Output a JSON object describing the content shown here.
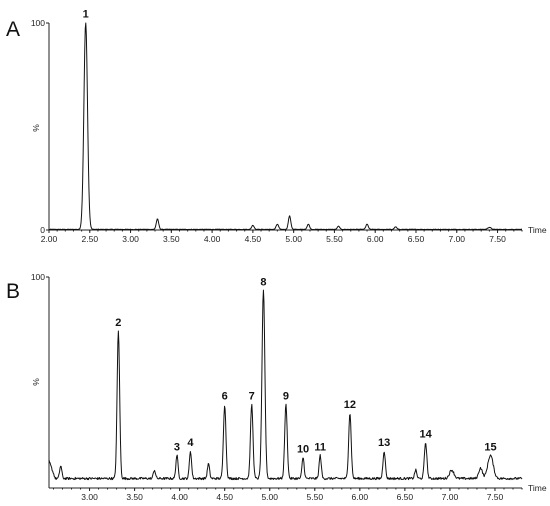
{
  "chart_data": [
    {
      "type": "line",
      "panel_label": "A",
      "xlabel": "Time",
      "ylabel": "%",
      "xlim": [
        2.0,
        7.8
      ],
      "ylim": [
        0,
        100
      ],
      "x_ticks": [
        "2.00",
        "2.50",
        "3.00",
        "3.50",
        "4.00",
        "4.50",
        "5.00",
        "5.50",
        "6.00",
        "6.50",
        "7.00",
        "7.50"
      ],
      "y_ticks": [
        "0",
        "100"
      ],
      "baseline": 0.3,
      "peaks": [
        {
          "label": "1",
          "x": 2.45,
          "y": 100,
          "w": 0.022
        },
        {
          "label": "",
          "x": 3.33,
          "y": 5,
          "w": 0.015
        },
        {
          "label": "",
          "x": 4.5,
          "y": 2,
          "w": 0.015
        },
        {
          "label": "",
          "x": 4.8,
          "y": 2.5,
          "w": 0.015
        },
        {
          "label": "",
          "x": 4.95,
          "y": 6.5,
          "w": 0.015
        },
        {
          "label": "",
          "x": 5.18,
          "y": 2.5,
          "w": 0.015
        },
        {
          "label": "",
          "x": 5.55,
          "y": 1.5,
          "w": 0.015
        },
        {
          "label": "",
          "x": 5.9,
          "y": 2.5,
          "w": 0.015
        },
        {
          "label": "",
          "x": 6.25,
          "y": 1.2,
          "w": 0.015
        },
        {
          "label": "",
          "x": 7.4,
          "y": 1.0,
          "w": 0.02
        }
      ]
    },
    {
      "type": "line",
      "panel_label": "B",
      "xlabel": "Time",
      "ylabel": "%",
      "xlim": [
        2.55,
        7.8
      ],
      "ylim": [
        0,
        100
      ],
      "x_ticks": [
        "3.00",
        "3.50",
        "4.00",
        "4.50",
        "5.00",
        "5.50",
        "6.00",
        "6.50",
        "7.00",
        "7.50"
      ],
      "y_ticks": [
        "100"
      ],
      "baseline": 4.5,
      "peaks": [
        {
          "label": "",
          "x": 2.68,
          "y": 6,
          "w": 0.012
        },
        {
          "label": "2",
          "x": 3.32,
          "y": 70,
          "w": 0.014
        },
        {
          "label": "",
          "x": 3.72,
          "y": 4,
          "w": 0.012
        },
        {
          "label": "3",
          "x": 3.97,
          "y": 11,
          "w": 0.012
        },
        {
          "label": "4",
          "x": 4.12,
          "y": 13,
          "w": 0.012
        },
        {
          "label": "",
          "x": 4.32,
          "y": 7,
          "w": 0.012
        },
        {
          "label": "6",
          "x": 4.5,
          "y": 35,
          "w": 0.014
        },
        {
          "label": "7",
          "x": 4.8,
          "y": 35,
          "w": 0.014
        },
        {
          "label": "8",
          "x": 4.93,
          "y": 89,
          "w": 0.016
        },
        {
          "label": "9",
          "x": 5.18,
          "y": 35,
          "w": 0.014
        },
        {
          "label": "10",
          "x": 5.37,
          "y": 10,
          "w": 0.012
        },
        {
          "label": "11",
          "x": 5.56,
          "y": 11,
          "w": 0.012
        },
        {
          "label": "12",
          "x": 5.89,
          "y": 31,
          "w": 0.014
        },
        {
          "label": "13",
          "x": 6.27,
          "y": 13,
          "w": 0.013
        },
        {
          "label": "",
          "x": 6.62,
          "y": 4,
          "w": 0.012
        },
        {
          "label": "14",
          "x": 6.73,
          "y": 17,
          "w": 0.014
        },
        {
          "label": "",
          "x": 7.02,
          "y": 4,
          "w": 0.025
        },
        {
          "label": "",
          "x": 7.34,
          "y": 5,
          "w": 0.02
        },
        {
          "label": "15",
          "x": 7.45,
          "y": 11,
          "w": 0.03
        }
      ]
    }
  ]
}
